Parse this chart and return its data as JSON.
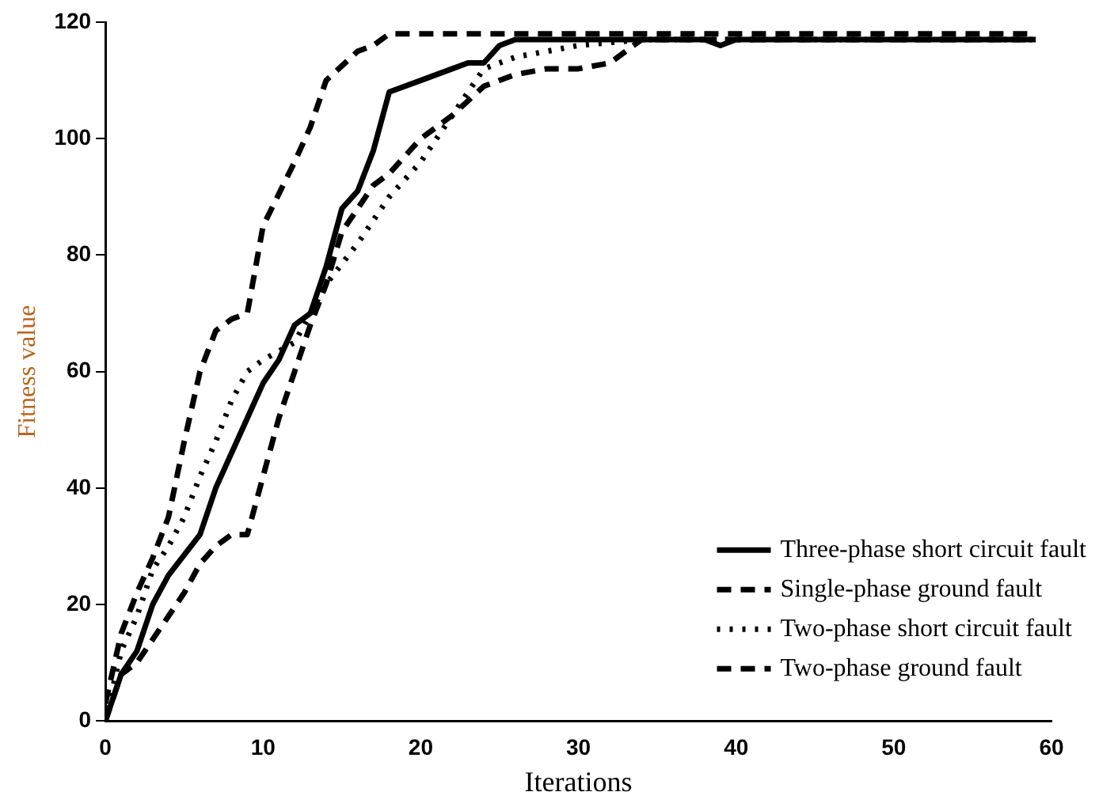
{
  "chart_data": {
    "type": "line",
    "xlabel": "Iterations",
    "ylabel": "Fitness value",
    "xlim": [
      0,
      60
    ],
    "ylim": [
      0,
      120
    ],
    "xticks": [
      0,
      10,
      20,
      30,
      40,
      50,
      60
    ],
    "yticks": [
      0,
      20,
      40,
      60,
      80,
      100,
      120
    ],
    "grid": false,
    "legend": "bottom right",
    "marker": "none",
    "series": [
      {
        "name": "Three-phase short circuit fault",
        "color": "#000000",
        "line_style": "solid",
        "x": [
          0,
          1,
          2,
          3,
          4,
          6,
          7,
          9,
          10,
          11,
          12,
          13,
          14,
          15,
          16,
          17,
          18,
          20,
          22,
          23,
          24,
          25,
          26,
          38,
          39,
          40,
          59
        ],
        "values": [
          0,
          8,
          12,
          20,
          25,
          32,
          40,
          52,
          58,
          62,
          68,
          70,
          78,
          88,
          91,
          98,
          108,
          110,
          112,
          113,
          113,
          116,
          117,
          117,
          116,
          117,
          117
        ]
      },
      {
        "name": "Single-phase ground fault",
        "color": "#000000",
        "line_style": "dashed",
        "x": [
          0,
          1,
          2,
          3,
          4,
          5,
          6,
          7,
          8,
          9,
          10,
          11,
          12,
          13,
          14,
          15,
          16,
          17,
          18,
          20,
          22,
          24,
          26,
          28,
          30,
          32,
          34,
          59
        ],
        "values": [
          0,
          8,
          10,
          14,
          18,
          22,
          27,
          30,
          32,
          32,
          42,
          52,
          60,
          68,
          75,
          84,
          88,
          92,
          94,
          100,
          104,
          109,
          111,
          112,
          112,
          113,
          117,
          117
        ]
      },
      {
        "name": "Two-phase short circuit fault",
        "color": "#000000",
        "line_style": "dotted",
        "x": [
          0,
          1,
          2,
          3,
          4,
          5,
          6,
          7,
          8,
          9,
          10,
          12,
          14,
          16,
          18,
          20,
          22,
          24,
          26,
          28,
          30,
          34,
          59
        ],
        "values": [
          0,
          12,
          18,
          26,
          30,
          35,
          42,
          48,
          55,
          60,
          62,
          65,
          75,
          82,
          90,
          96,
          104,
          112,
          114,
          115,
          116,
          117,
          117
        ]
      },
      {
        "name": "Two-phase ground fault",
        "color": "#000000",
        "line_style": "dashed",
        "x": [
          0,
          1,
          2,
          3,
          4,
          5,
          6,
          7,
          8,
          9,
          10,
          12,
          13,
          14,
          16,
          17,
          18,
          59
        ],
        "values": [
          3,
          15,
          22,
          28,
          35,
          48,
          60,
          67,
          69,
          70,
          85,
          96,
          102,
          110,
          115,
          116,
          118,
          118
        ]
      }
    ]
  }
}
